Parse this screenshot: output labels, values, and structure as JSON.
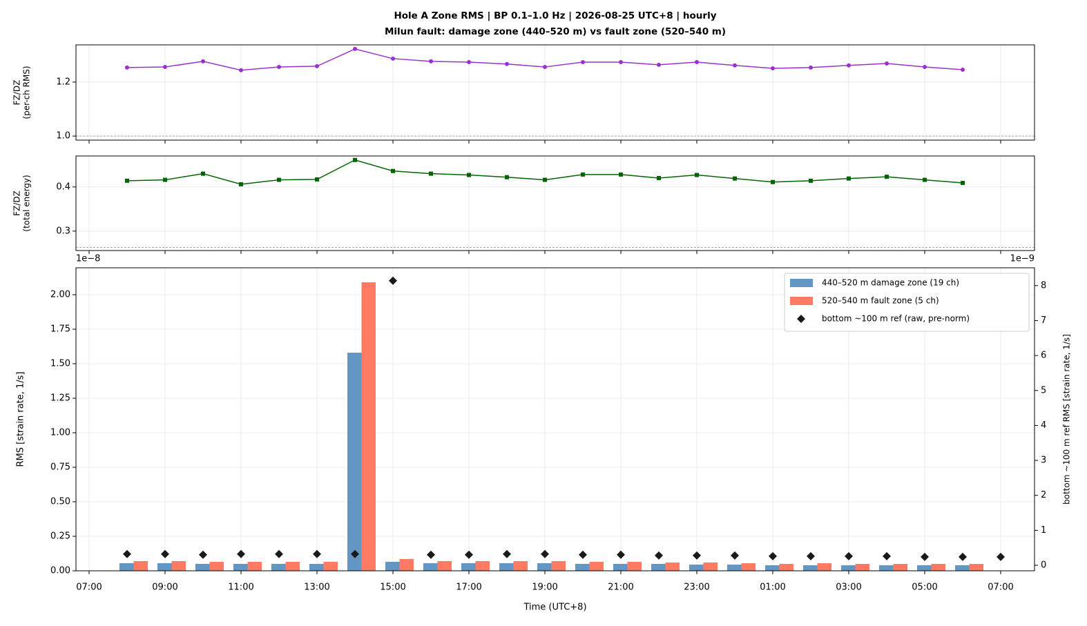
{
  "chart_data": [
    {
      "type": "line",
      "title": [
        "Hole A Zone RMS  |  BP 0.1–1.0 Hz  |  2026-08-25 UTC+8  |  hourly",
        "Milun fault: damage zone (440–520 m) vs fault zone (520–540 m)"
      ],
      "ylabel": [
        "FZ/DZ",
        "(per-ch RMS)"
      ],
      "ylim": [
        0.985,
        1.338
      ],
      "yticks": [
        {
          "value": 1.0,
          "label": "1.0"
        },
        {
          "value": 1.2,
          "label": "1.2"
        }
      ],
      "reference_line": 1.0,
      "grid": true,
      "series": [
        {
          "color": "#9932cc",
          "marker": "circle",
          "values": [
            null,
            1.254,
            1.256,
            1.277,
            1.244,
            1.256,
            1.259,
            1.323,
            1.287,
            1.277,
            1.274,
            1.267,
            1.256,
            1.274,
            1.274,
            1.264,
            1.274,
            1.262,
            1.251,
            1.254,
            1.262,
            1.269,
            1.256,
            1.246,
            null
          ]
        }
      ]
    },
    {
      "type": "line",
      "ylabel": [
        "FZ/DZ",
        "(total energy)"
      ],
      "ylim": [
        0.256,
        0.47
      ],
      "yticks": [
        0.3,
        0.4
      ],
      "reference_line": 0.263,
      "grid": true,
      "series": [
        {
          "color": "#006400",
          "marker": "square",
          "values": [
            null,
            0.414,
            0.416,
            0.43,
            0.406,
            0.416,
            0.417,
            0.461,
            0.436,
            0.43,
            0.427,
            0.422,
            0.416,
            0.428,
            0.428,
            0.42,
            0.427,
            0.419,
            0.411,
            0.414,
            0.419,
            0.423,
            0.416,
            0.409,
            null
          ]
        }
      ]
    },
    {
      "type": "bar",
      "categories": [
        "07:00",
        null,
        "09:00",
        null,
        "11:00",
        null,
        "13:00",
        null,
        "15:00",
        null,
        "17:00",
        null,
        "19:00",
        null,
        "21:00",
        null,
        "23:00",
        null,
        "01:00",
        null,
        "03:00",
        null,
        "05:00",
        null,
        "07:00"
      ],
      "xlabel": "Time (UTC+8)",
      "ylabel": "RMS  [strain rate, 1/s]",
      "y2label": "bottom ~100 m ref RMS  [strain rate, 1/s]",
      "y_offset_label": "1e−8",
      "y2_offset_label": "1e−9",
      "ylim": [
        0,
        2.195
      ],
      "yticks": [
        {
          "value": 0,
          "label": "0.00"
        },
        {
          "value": 0.25,
          "label": "0.25"
        },
        {
          "value": 0.5,
          "label": "0.50"
        },
        {
          "value": 0.75,
          "label": "0.75"
        },
        {
          "value": 1.0,
          "label": "1.00"
        },
        {
          "value": 1.25,
          "label": "1.25"
        },
        {
          "value": 1.5,
          "label": "1.50"
        },
        {
          "value": 1.75,
          "label": "1.75"
        },
        {
          "value": 2.0,
          "label": "2.00"
        }
      ],
      "y2lim": [
        -0.158,
        8.51
      ],
      "y2ticks": [
        0,
        1,
        2,
        3,
        4,
        5,
        6,
        7,
        8
      ],
      "grid": true,
      "legend": "upper right",
      "series": [
        {
          "name": "440–520 m  damage zone (19 ch)",
          "color": "#6496c3",
          "type": "bar",
          "values": [
            null,
            0.055,
            0.055,
            0.05,
            0.05,
            0.05,
            0.05,
            1.58,
            0.065,
            0.055,
            0.055,
            0.055,
            0.055,
            0.05,
            0.05,
            0.05,
            0.045,
            0.045,
            0.04,
            0.04,
            0.04,
            0.04,
            0.04,
            0.04,
            null
          ]
        },
        {
          "name": "520–540 m  fault zone (5 ch)",
          "color": "#ff7a63",
          "type": "bar",
          "values": [
            null,
            0.07,
            0.07,
            0.065,
            0.065,
            0.065,
            0.065,
            2.09,
            0.085,
            0.07,
            0.07,
            0.07,
            0.07,
            0.065,
            0.065,
            0.06,
            0.06,
            0.055,
            0.05,
            0.055,
            0.05,
            0.05,
            0.05,
            0.05,
            null
          ]
        },
        {
          "name": "bottom ~100 m ref (raw, pre-norm)",
          "color": "#1a1a1a",
          "type": "scatter",
          "marker": "diamond",
          "axis": "y2",
          "values": [
            null,
            0.32,
            0.32,
            0.3,
            0.32,
            0.32,
            0.32,
            0.32,
            8.14,
            0.3,
            0.3,
            0.32,
            0.32,
            0.3,
            0.3,
            0.28,
            0.28,
            0.28,
            0.26,
            0.26,
            0.26,
            0.26,
            0.24,
            0.24,
            0.24
          ]
        }
      ]
    }
  ]
}
